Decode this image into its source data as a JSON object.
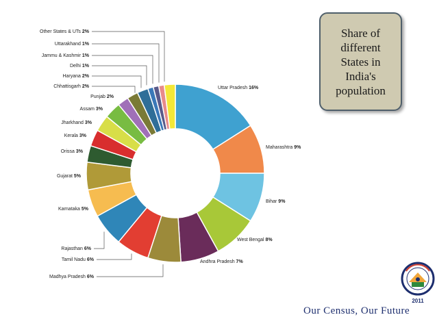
{
  "slide": {
    "title": "Share of\ndifferent\nStates in\nIndia's\npopulation",
    "footer_slogan": "Our Census, Our Future",
    "logo": {
      "icon": "census-of-india-emblem",
      "year": "2011",
      "arc_text": "Census of India"
    }
  },
  "chart_data": {
    "type": "pie",
    "donut": true,
    "unit": "%",
    "slices": [
      {
        "label": "Uttar Pradesh",
        "value": 16,
        "color": "#3fa1d0"
      },
      {
        "label": "Maharashtra",
        "value": 9,
        "color": "#f0894a"
      },
      {
        "label": "Bihar",
        "value": 9,
        "color": "#6ec3e2"
      },
      {
        "label": "West Bengal",
        "value": 8,
        "color": "#a8c838"
      },
      {
        "label": "Andhra Pradesh",
        "value": 7,
        "color": "#6a2c5a"
      },
      {
        "label": "Madhya Pradesh",
        "value": 6,
        "color": "#9c8a3a"
      },
      {
        "label": "Tamil Nadu",
        "value": 6,
        "color": "#e23e32"
      },
      {
        "label": "Rajasthan",
        "value": 6,
        "color": "#2f86b8"
      },
      {
        "label": "Karnataka",
        "value": 5,
        "color": "#f6bc50"
      },
      {
        "label": "Gujarat",
        "value": 5,
        "color": "#b09a38"
      },
      {
        "label": "Orissa",
        "value": 3,
        "color": "#2e5b30"
      },
      {
        "label": "Kerala",
        "value": 3,
        "color": "#d82e2e"
      },
      {
        "label": "Jharkhand",
        "value": 3,
        "color": "#d8de48"
      },
      {
        "label": "Assam",
        "value": 3,
        "color": "#78bc42"
      },
      {
        "label": "Punjab",
        "value": 2,
        "color": "#a070b8"
      },
      {
        "label": "Chhattisgarh",
        "value": 2,
        "color": "#7a7a36"
      },
      {
        "label": "Haryana",
        "value": 2,
        "color": "#2f6e98"
      },
      {
        "label": "Delhi",
        "value": 1,
        "color": "#3a78b8"
      },
      {
        "label": "Jammu & Kashmir",
        "value": 1,
        "color": "#5a5a8a"
      },
      {
        "label": "Uttarakhand",
        "value": 1,
        "color": "#e88a8a"
      },
      {
        "label": "Other States & UTs",
        "value": 2,
        "color": "#f3e838"
      }
    ]
  }
}
